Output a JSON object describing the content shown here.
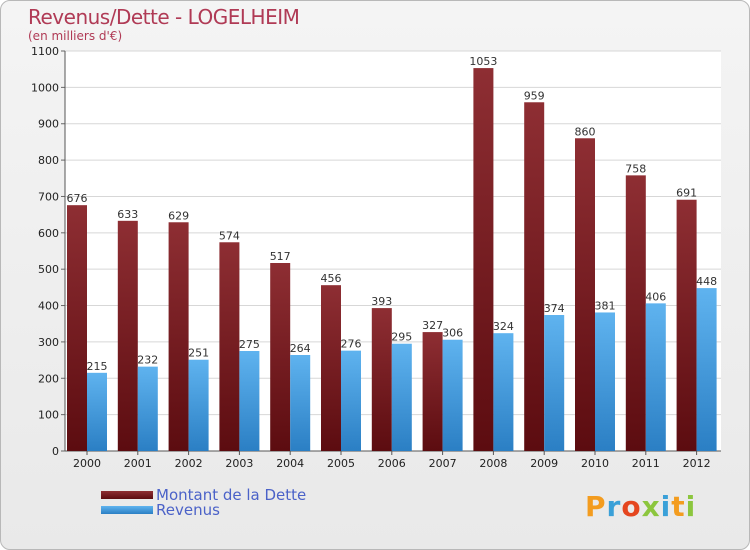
{
  "chart_data": {
    "type": "bar",
    "title": "Revenus/Dette - LOGELHEIM",
    "subtitle": "(en milliers d'€)",
    "categories": [
      "2000",
      "2001",
      "2002",
      "2003",
      "2004",
      "2005",
      "2006",
      "2007",
      "2008",
      "2009",
      "2010",
      "2011",
      "2012"
    ],
    "series": [
      {
        "name": "Montant de la Dette",
        "color": "#7a1a1f",
        "values": [
          676,
          633,
          629,
          574,
          517,
          456,
          393,
          327,
          1053,
          959,
          860,
          758,
          691
        ]
      },
      {
        "name": "Revenus",
        "color": "#4a9de0",
        "values": [
          215,
          232,
          251,
          275,
          264,
          276,
          295,
          306,
          324,
          374,
          381,
          406,
          448
        ]
      }
    ],
    "ylim": [
      0,
      1100
    ],
    "yticks": [
      0,
      100,
      200,
      300,
      400,
      500,
      600,
      700,
      800,
      900,
      1000,
      1100
    ],
    "grid": true,
    "legend_position": "bottom-left"
  },
  "logo": {
    "letters": [
      "P",
      "r",
      "o",
      "x",
      "i",
      "t",
      "i"
    ],
    "colors": [
      "#f39c1f",
      "#3aa0d8",
      "#e5461f",
      "#8cc63e",
      "#3aa0d8",
      "#f39c1f",
      "#8cc63e"
    ]
  }
}
